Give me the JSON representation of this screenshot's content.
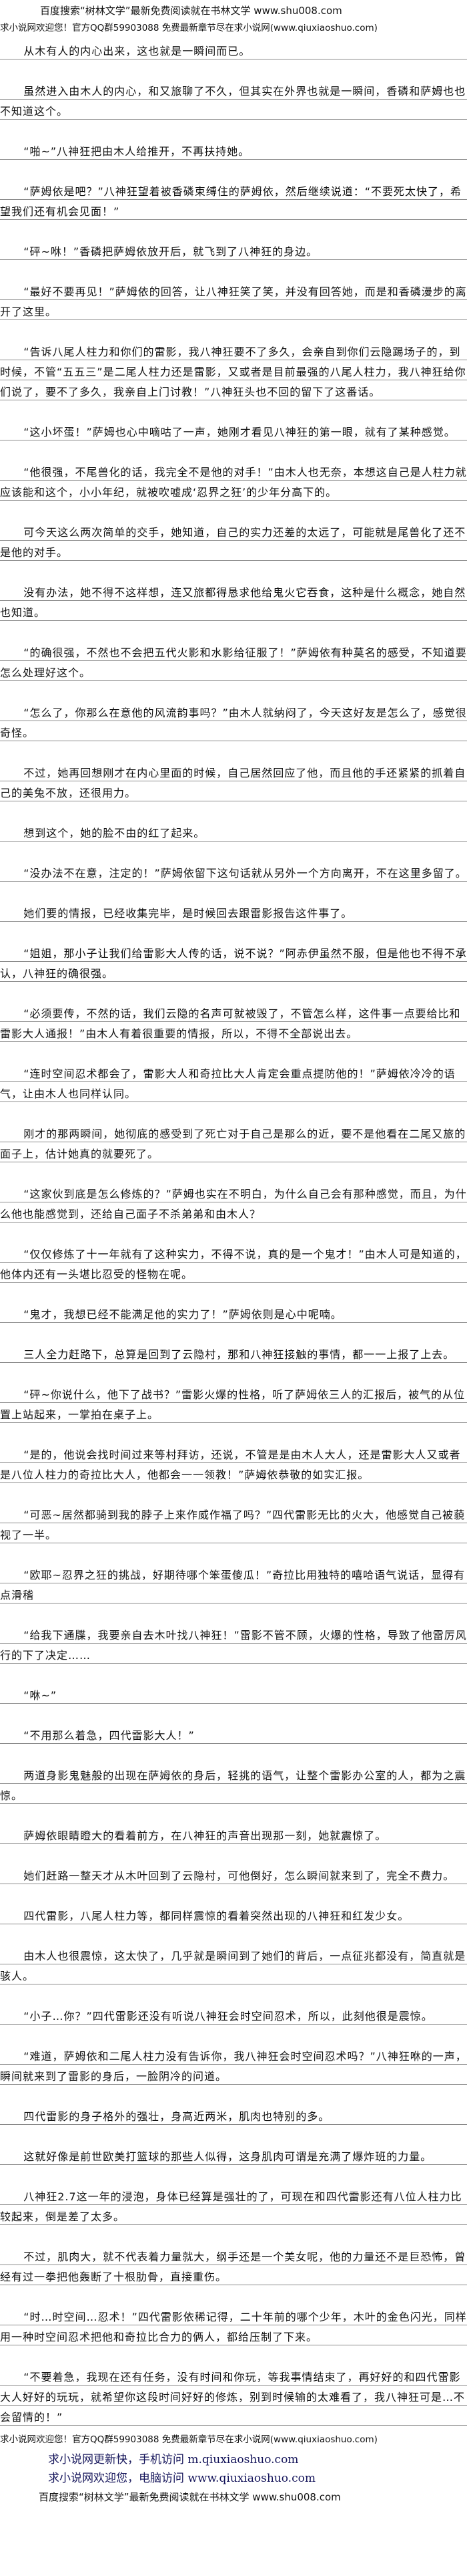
{
  "header": {
    "banner": "百度搜索“树林文学”最新免费阅读就在书林文学 www.shu008.com",
    "welcome": "求小说网欢迎您！官方QQ群59903088 免费最新章节尽在求小说网(www.qiuxiaoshuo.com)"
  },
  "paragraphs": [
    "从木有人的内心出来，这也就是一瞬间而已。",
    "虽然进入由木人的内心，和又旅聊了不久，但其实在外界也就是一瞬间，香磷和萨姆也也不知道这个。",
    "“啪~”八神狂把由木人给推开，不再扶持她。",
    "“萨姆依是吧？”八神狂望着被香磷束缚住的萨姆依，然后继续说道：“不要死太快了，希望我们还有机会见面！”",
    "“砰~咻！”香磷把萨姆依放开后，就飞到了八神狂的身边。",
    "“最好不要再见！”萨姆依的回答，让八神狂笑了笑，并没有回答她，而是和香磷漫步的离开了这里。",
    "“告诉八尾人柱力和你们的雷影，我八神狂要不了多久，会亲自到你们云隐踢场子的，到时候，不管“五五三”是二尾人柱力还是雷影，又或者是目前最强的八尾人柱力，我八神狂给你们说了，要不了多久，我亲自上门讨教！”八神狂头也不回的留下了这番话。",
    "“这小坏蛋！”萨姆也心中嘀咕了一声，她刚才看见八神狂的第一眼，就有了某种感觉。",
    "“他很强，不尾兽化的话，我完全不是他的对手！”由木人也无奈，本想这自己是人柱力就应该能和这个，小小年纪，就被吹嘘成‘忍界之狂’的少年分高下的。",
    "可今天这么两次简单的交手，她知道，自己的实力还差的太远了，可能就是尾兽化了还不是他的对手。",
    "没有办法，她不得不这样想，连又旅都得恳求他给鬼火它吞食，这种是什么概念，她自然也知道。",
    "“的确很强，不然也不会把五代火影和水影给征服了！”萨姆依有种莫名的感受，不知道要怎么处理好这个。",
    "“怎么了，你那么在意他的风流韵事吗？”由木人就纳闷了，今天这好友是怎么了，感觉很奇怪。",
    "不过，她再回想刚才在内心里面的时候，自己居然回应了他，而且他的手还紧紧的抓着自己的美兔不放，还很用力。",
    "想到这个，她的脸不由的红了起来。",
    "“没办法不在意，注定的！”萨姆依留下这句话就从另外一个方向离开，不在这里多留了。",
    "她们要的情报，已经收集完毕，是时候回去跟雷影报告这件事了。",
    "“姐姐，那小子让我们给雷影大人传的话，说不说？”阿赤伊虽然不服，但是他也不得不承认，八神狂的确很强。",
    "“必须要传，不然的话，我们云隐的名声可就被毁了，不管怎么样，这件事一点要给比和雷影大人通报！”由木人有着很重要的情报，所以，不得不全部说出去。",
    "“连时空间忍术都会了，雷影大人和奇拉比大人肯定会重点提防他的！”萨姆依冷冷的语气，让由木人也同样认同。",
    "刚才的那两瞬间，她彻底的感受到了死亡对于自己是那么的近，要不是他看在二尾又旅的面子上，估计她真的就要死了。",
    "“这家伙到底是怎么修炼的？”萨姆也实在不明白，为什么自己会有那种感觉，而且，为什么他也能感觉到，还给自己面子不杀弟弟和由木人？",
    "“仅仅修炼了十一年就有了这种实力，不得不说，真的是一个鬼才！”由木人可是知道的，他体内还有一头堪比忍受的怪物在呢。",
    "“鬼才，我想已经不能满足他的实力了！”萨姆依则是心中呢喃。",
    "三人全力赶路下，总算是回到了云隐村，那和八神狂接触的事情，都一一上报了上去。",
    "“砰~你说什么，他下了战书？”雷影火爆的性格，听了萨姆依三人的汇报后，被气的从位置上站起来，一掌拍在桌子上。",
    "“是的，他说会找时间过来等村拜访，还说，不管是是由木人大人，还是雷影大人又或者是八位人柱力的奇拉比大人，他都会一一领教！”萨姆依恭敬的如实汇报。",
    "“可恶~居然都骑到我的脖子上来作威作福了吗？”四代雷影无比的火大，他感觉自己被藐视了一半。",
    "“欧耶~忍界之狂的挑战，好期待哪个笨蛋傻瓜！”奇拉比用独特的嘻哈语气说话，显得有点滑稽",
    "“给我下通牒，我要亲自去木叶找八神狂！”雷影不管不顾，火爆的性格，导致了他雷厉风行的下了决定……",
    "“咻~”",
    "“不用那么着急，四代雷影大人！”",
    "两道身影鬼魅般的出现在萨姆依的身后，轻挑的语气，让整个雷影办公室的人，都为之震惊。",
    "萨姆依眼睛瞪大的看着前方，在八神狂的声音出现那一刻，她就震惊了。",
    "她们赶路一整天才从木叶回到了云隐村，可他倒好，怎么瞬间就来到了，完全不费力。",
    "四代雷影，八尾人柱力等，都同样震惊的看着突然出现的八神狂和红发少女。",
    "由木人也很震惊，这太快了，几乎就是瞬间到了她们的背后，一点征兆都没有，简直就是骇人。",
    "“小子…你？”四代雷影还没有听说八神狂会时空间忍术，所以，此刻他很是震惊。",
    "“难道，萨姆依和二尾人柱力没有告诉你，我八神狂会时空间忍术吗？”八神狂咻的一声，瞬间就来到了雷影的身后，一脸阴冷的问道。",
    "四代雷影的身子格外的强壮，身高近两米，肌肉也特别的多。",
    "这就好像是前世欧美打篮球的那些人似得，这身肌肉可谓是充满了爆炸班的力量。",
    "八神狂2.7这一年的浸泡，身体已经算是强壮的了，可现在和四代雷影还有八位人柱力比较起来，倒是差了太多。",
    "不过，肌肉大，就不代表着力量就大，纲手还是一个美女呢，他的力量还不是巨恐怖，曾经有过一拳把他轰断了十根肋骨，直接重伤。",
    "“时…时空间…忍术！”四代雷影依稀记得，二十年前的哪个少年，木叶的金色闪光，同样用一种时空间忍术把他和奇拉比合力的俩人，都给压制了下来。",
    "“不要着急，我现在还有任务，没有时间和你玩，等我事情结束了，再好好的和四代雷影大人好好的玩玩，就希望你这段时间好好的修炼，别到时候输的太难看了，我八神狂可是…不会留情的！”"
  ],
  "footer": {
    "welcome": "求小说网欢迎您！官方QQ群59903088 免费最新章节尽在求小说网(www.qiuxiaoshuo.com)",
    "mobile": "求小说网更新快，手机访问 m.qiuxiaoshuo.com",
    "desktop": "求小说网欢迎您，电脑访问 www.qiuxiaoshuo.com",
    "banner": "百度搜索“树林文学”最新免费阅读就在书林文学 www.shu008.com"
  },
  "colors": {
    "text": "#111111",
    "footer_link": "#14145a",
    "rule": "#8a8a8a"
  }
}
